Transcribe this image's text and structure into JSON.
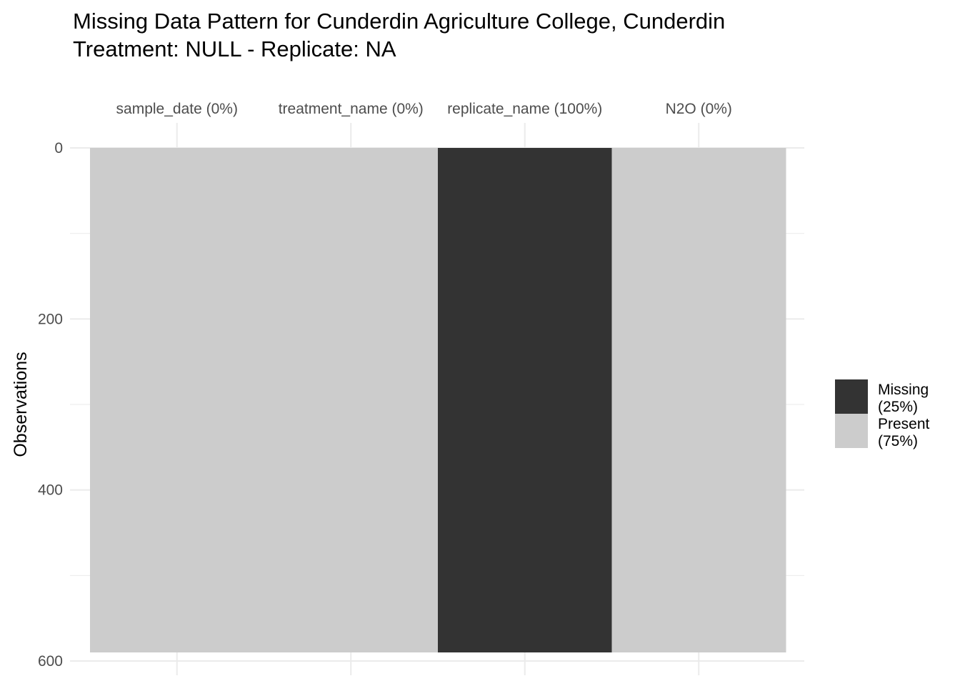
{
  "title": {
    "line1": "Missing Data Pattern for Cunderdin Agriculture College, Cunderdin",
    "line2": "Treatment: NULL - Replicate: NA"
  },
  "chart_data": {
    "type": "heatmap",
    "ylabel": "Observations",
    "xlabel": "",
    "x_axis_position": "top",
    "y_reversed": true,
    "ylim": [
      0,
      600
    ],
    "y_ticks": [
      0,
      200,
      400,
      600
    ],
    "n_observations": 590,
    "columns": [
      {
        "name": "sample_date",
        "label": "sample_date (0%)",
        "missing_pct": 0
      },
      {
        "name": "treatment_name",
        "label": "treatment_name (0%)",
        "missing_pct": 0
      },
      {
        "name": "replicate_name",
        "label": "replicate_name (100%)",
        "missing_pct": 100
      },
      {
        "name": "N2O",
        "label": "N2O (0%)",
        "missing_pct": 0
      }
    ],
    "legend": {
      "position": "right",
      "items": [
        {
          "key": "missing",
          "line1": "Missing",
          "line2": "(25%)",
          "color": "#333333"
        },
        {
          "key": "present",
          "line1": "Present",
          "line2": "(75%)",
          "color": "#cccccc"
        }
      ]
    },
    "grid": true,
    "colors": {
      "missing": "#333333",
      "present": "#cccccc",
      "grid": "#ebebeb"
    }
  }
}
